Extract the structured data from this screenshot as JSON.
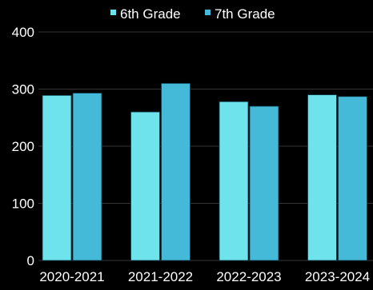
{
  "chart_data": {
    "type": "bar",
    "title": "",
    "xlabel": "",
    "ylabel": "",
    "categories": [
      "2020-2021",
      "2021-2022",
      "2022-2023",
      "2023-2024"
    ],
    "series": [
      {
        "name": "6th Grade",
        "values": [
          289,
          260,
          278,
          290
        ],
        "color": "#6ee3ec"
      },
      {
        "name": "7th Grade",
        "values": [
          293,
          310,
          270,
          287
        ],
        "color": "#45b9d8"
      }
    ],
    "ylim": [
      0,
      400
    ],
    "yticks": [
      "0",
      "100",
      "200",
      "300",
      "400"
    ],
    "grid": true,
    "legend_position": "top-center",
    "colors": {
      "background": "#000000",
      "text": "#ffffff",
      "grid": "#333333"
    }
  }
}
